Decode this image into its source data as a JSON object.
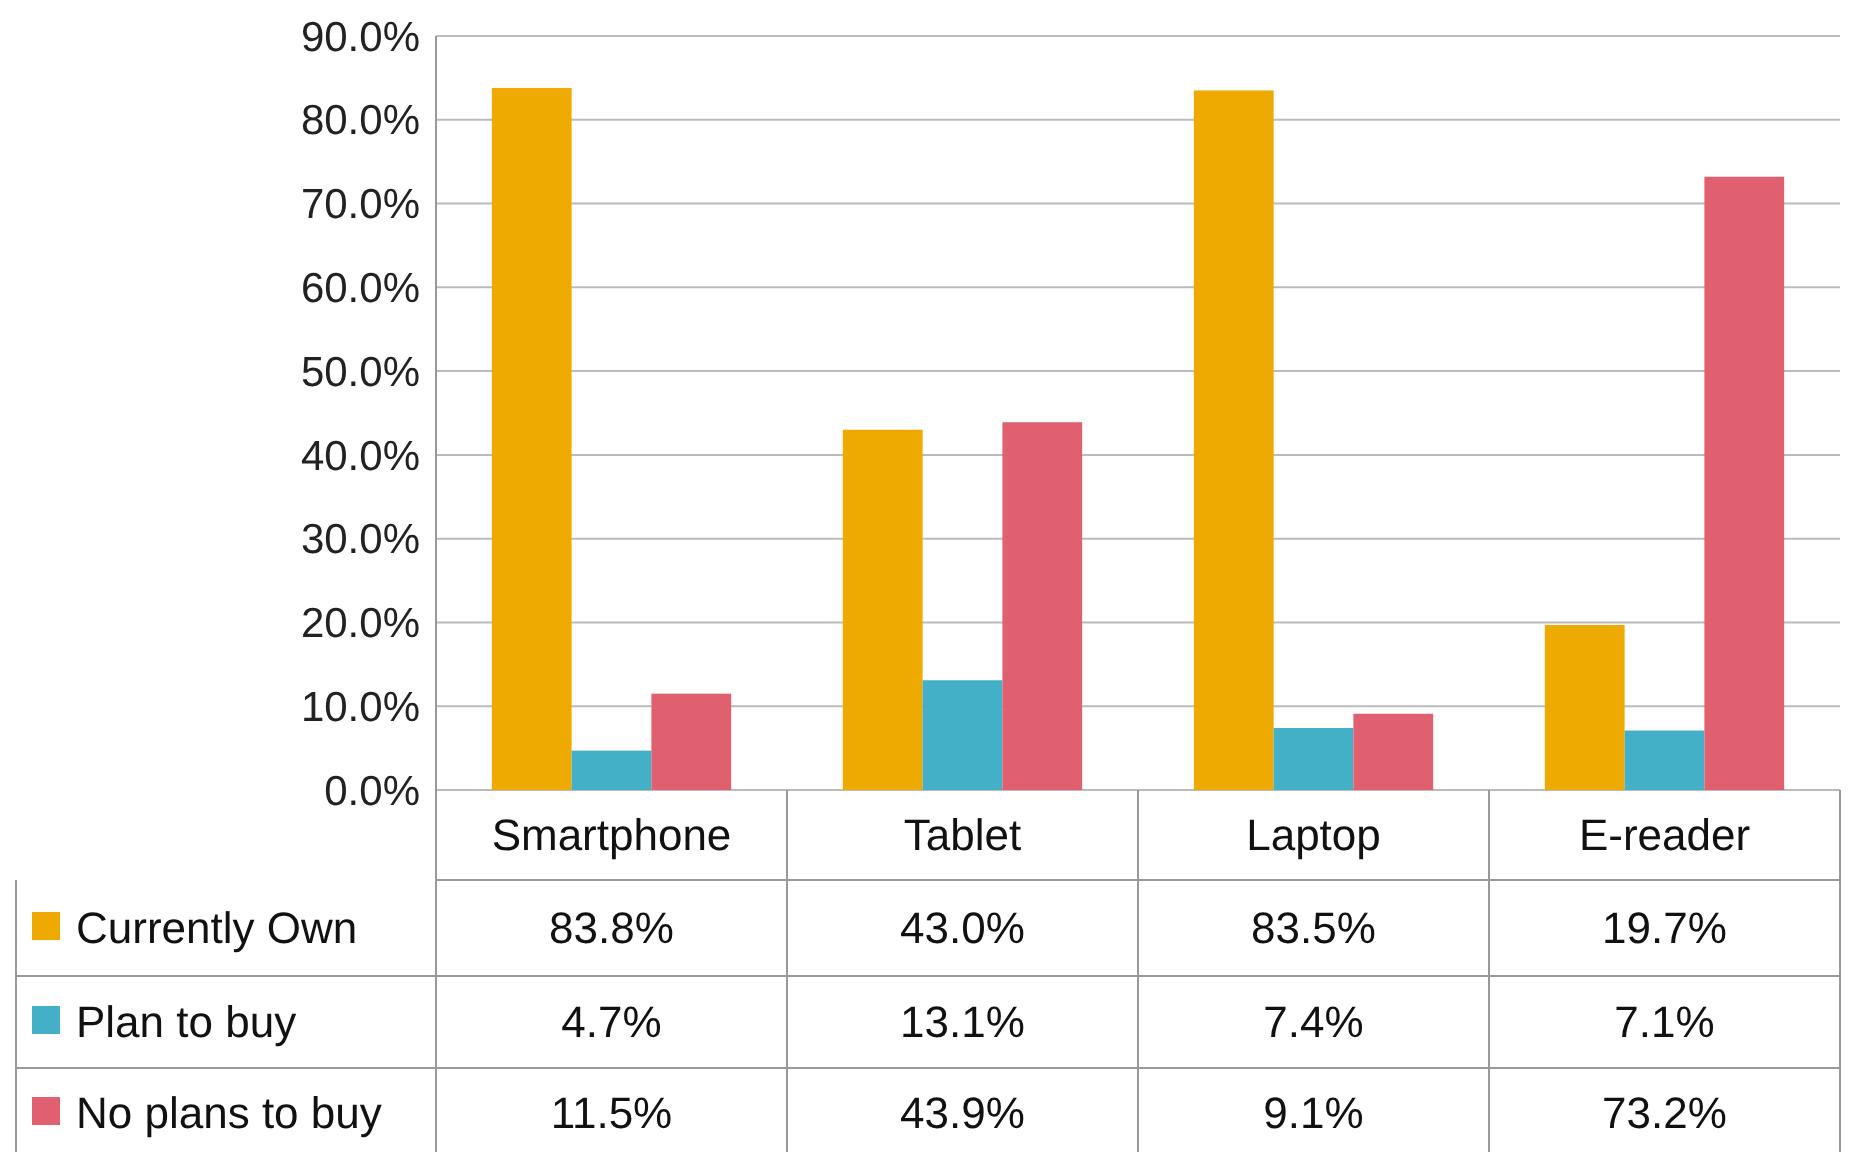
{
  "chart_data": {
    "type": "bar",
    "categories": [
      "Smartphone",
      "Tablet",
      "Laptop",
      "E-reader"
    ],
    "series": [
      {
        "name": "Currently Own",
        "color": "#eeaa00",
        "values": [
          83.8,
          43.0,
          83.5,
          19.7
        ],
        "value_labels": [
          "83.8%",
          "43.0%",
          "83.5%",
          "19.7%"
        ]
      },
      {
        "name": "Plan to buy",
        "color": "#44b0c8",
        "values": [
          4.7,
          13.1,
          7.4,
          7.1
        ],
        "value_labels": [
          "4.7%",
          "13.1%",
          "7.4%",
          "7.1%"
        ]
      },
      {
        "name": "No plans to buy",
        "color": "#e06070",
        "values": [
          11.5,
          43.9,
          9.1,
          73.2
        ],
        "value_labels": [
          "11.5%",
          "43.9%",
          "9.1%",
          "73.2%"
        ]
      }
    ],
    "ylim": [
      0,
      90
    ],
    "yticks": [
      {
        "value": 0,
        "label": "0.0%"
      },
      {
        "value": 10,
        "label": "10.0%"
      },
      {
        "value": 20,
        "label": "20.0%"
      },
      {
        "value": 30,
        "label": "30.0%"
      },
      {
        "value": 40,
        "label": "40.0%"
      },
      {
        "value": 50,
        "label": "50.0%"
      },
      {
        "value": 60,
        "label": "60.0%"
      },
      {
        "value": 70,
        "label": "70.0%"
      },
      {
        "value": 80,
        "label": "80.0%"
      },
      {
        "value": 90,
        "label": "90.0%"
      }
    ],
    "grid": "y",
    "legend": "bottom left"
  }
}
